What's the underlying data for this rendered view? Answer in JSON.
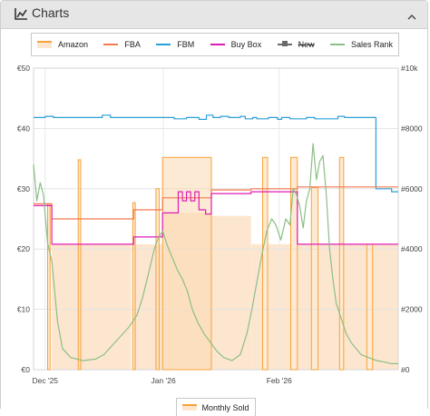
{
  "panel": {
    "title": "Charts",
    "icon": "line-chart-icon",
    "collapse_icon": "chevron-up-icon"
  },
  "legend": [
    {
      "label": "Amazon",
      "type": "area",
      "color": "#f7a23a",
      "fill": "#fde6cf",
      "enabled": true
    },
    {
      "label": "FBA",
      "type": "line",
      "color": "#f27950",
      "enabled": true
    },
    {
      "label": "FBM",
      "type": "line",
      "color": "#2a9fd6",
      "enabled": true
    },
    {
      "label": "Buy Box",
      "type": "line",
      "color": "#e01bb5",
      "enabled": true
    },
    {
      "label": "New",
      "type": "line-marker",
      "color": "#6b6b6b",
      "enabled": false
    },
    {
      "label": "Sales Rank",
      "type": "line",
      "color": "#8bbf85",
      "enabled": true
    }
  ],
  "bottom_legend": {
    "label": "Monthly Sold"
  },
  "chart_data": {
    "type": "line",
    "x_ticks": [
      "Dec '25",
      "Jan '26",
      "Feb '26"
    ],
    "y_left_ticks": [
      "€0",
      "€10",
      "€20",
      "€30",
      "€40",
      "€50"
    ],
    "y_right_ticks": [
      "#0",
      "#2000",
      "#4000",
      "#6000",
      "#8000",
      "#10k"
    ],
    "y_left_range": [
      0,
      50
    ],
    "y_right_range": [
      0,
      10000
    ],
    "grid": true,
    "legend_position": "top",
    "series": [
      {
        "name": "FBM",
        "axis": "left",
        "points": [
          [
            0,
            41.8
          ],
          [
            14,
            41.8
          ],
          [
            14,
            42
          ],
          [
            24,
            42
          ],
          [
            24,
            41.8
          ],
          [
            83,
            41.8
          ],
          [
            83,
            42.2
          ],
          [
            93,
            42.2
          ],
          [
            93,
            41.8
          ],
          [
            170,
            41.8
          ],
          [
            170,
            41.6
          ],
          [
            185,
            41.6
          ],
          [
            185,
            41.8
          ],
          [
            200,
            41.8
          ],
          [
            200,
            41.5
          ],
          [
            209,
            41.5
          ],
          [
            209,
            42.2
          ],
          [
            217,
            42.2
          ],
          [
            217,
            41.8
          ],
          [
            226,
            41.8
          ],
          [
            226,
            42
          ],
          [
            236,
            42
          ],
          [
            236,
            41.8
          ],
          [
            250,
            41.8
          ],
          [
            250,
            42
          ],
          [
            256,
            42
          ],
          [
            256,
            41.6
          ],
          [
            265,
            41.6
          ],
          [
            265,
            41.8
          ],
          [
            270,
            41.8
          ],
          [
            270,
            41.6
          ],
          [
            284,
            41.6
          ],
          [
            284,
            41.8
          ],
          [
            295,
            41.8
          ],
          [
            295,
            41.5
          ],
          [
            300,
            41.5
          ],
          [
            300,
            41.8
          ],
          [
            310,
            41.8
          ],
          [
            310,
            41.6
          ],
          [
            330,
            41.6
          ],
          [
            330,
            41.8
          ],
          [
            340,
            41.8
          ],
          [
            340,
            41.6
          ],
          [
            368,
            41.6
          ],
          [
            368,
            42
          ],
          [
            376,
            42
          ],
          [
            376,
            41.8
          ],
          [
            414,
            41.8
          ],
          [
            414,
            30
          ],
          [
            433,
            30
          ],
          [
            433,
            29.5
          ],
          [
            441,
            29.5
          ]
        ]
      },
      {
        "name": "FBA",
        "axis": "left",
        "points": [
          [
            0,
            27.5
          ],
          [
            22,
            27.5
          ],
          [
            22,
            25
          ],
          [
            121,
            25
          ],
          [
            121,
            26.5
          ],
          [
            156,
            26.5
          ],
          [
            156,
            28.5
          ],
          [
            215,
            28.5
          ],
          [
            215,
            29.8
          ],
          [
            263,
            29.8
          ],
          [
            263,
            30
          ],
          [
            319,
            30
          ],
          [
            319,
            30.3
          ],
          [
            441,
            30.3
          ]
        ]
      },
      {
        "name": "Buy Box",
        "axis": "left",
        "points": [
          [
            0,
            27.2
          ],
          [
            22,
            27.2
          ],
          [
            22,
            20.8
          ],
          [
            121,
            20.8
          ],
          [
            121,
            22
          ],
          [
            156,
            22
          ],
          [
            156,
            26
          ],
          [
            175,
            26
          ],
          [
            175,
            29.5
          ],
          [
            180,
            29.5
          ],
          [
            180,
            28
          ],
          [
            185,
            28
          ],
          [
            185,
            29.5
          ],
          [
            190,
            29.5
          ],
          [
            190,
            28
          ],
          [
            195,
            28
          ],
          [
            195,
            29.5
          ],
          [
            200,
            29.5
          ],
          [
            200,
            26.5
          ],
          [
            208,
            26.5
          ],
          [
            208,
            25.8
          ],
          [
            215,
            25.8
          ],
          [
            215,
            29.2
          ],
          [
            263,
            29.2
          ],
          [
            263,
            29.5
          ],
          [
            319,
            29.5
          ],
          [
            319,
            20.8
          ],
          [
            441,
            20.8
          ]
        ]
      },
      {
        "name": "Sales Rank",
        "axis": "right",
        "points": [
          [
            0,
            6800
          ],
          [
            4,
            5600
          ],
          [
            8,
            6200
          ],
          [
            12,
            5800
          ],
          [
            17,
            4200
          ],
          [
            22,
            3600
          ],
          [
            29,
            1600
          ],
          [
            35,
            700
          ],
          [
            45,
            400
          ],
          [
            60,
            300
          ],
          [
            75,
            350
          ],
          [
            85,
            500
          ],
          [
            95,
            800
          ],
          [
            105,
            1100
          ],
          [
            115,
            1400
          ],
          [
            125,
            1800
          ],
          [
            132,
            2400
          ],
          [
            140,
            3300
          ],
          [
            146,
            4000
          ],
          [
            150,
            4300
          ],
          [
            156,
            4600
          ],
          [
            162,
            4100
          ],
          [
            168,
            3700
          ],
          [
            174,
            3300
          ],
          [
            180,
            3000
          ],
          [
            186,
            2600
          ],
          [
            192,
            2000
          ],
          [
            198,
            1600
          ],
          [
            206,
            1200
          ],
          [
            214,
            900
          ],
          [
            222,
            600
          ],
          [
            230,
            400
          ],
          [
            240,
            300
          ],
          [
            250,
            500
          ],
          [
            258,
            1200
          ],
          [
            264,
            2000
          ],
          [
            270,
            2900
          ],
          [
            276,
            3800
          ],
          [
            282,
            4600
          ],
          [
            288,
            5000
          ],
          [
            293,
            4800
          ],
          [
            299,
            4300
          ],
          [
            305,
            5000
          ],
          [
            310,
            4800
          ],
          [
            314,
            6000
          ],
          [
            318,
            5800
          ],
          [
            322,
            5400
          ],
          [
            326,
            4700
          ],
          [
            330,
            5600
          ],
          [
            334,
            6000
          ],
          [
            338,
            7500
          ],
          [
            342,
            6300
          ],
          [
            346,
            6900
          ],
          [
            350,
            7100
          ],
          [
            354,
            5800
          ],
          [
            358,
            4000
          ],
          [
            362,
            3000
          ],
          [
            366,
            2200
          ],
          [
            372,
            1700
          ],
          [
            378,
            1200
          ],
          [
            384,
            900
          ],
          [
            390,
            700
          ],
          [
            396,
            500
          ],
          [
            405,
            400
          ],
          [
            415,
            300
          ],
          [
            425,
            250
          ],
          [
            433,
            200
          ],
          [
            441,
            200
          ]
        ]
      }
    ],
    "amazon_spikes": [
      {
        "x0": 17,
        "x1": 20,
        "y": 27.5
      },
      {
        "x0": 54,
        "x1": 57,
        "y": 34.8
      },
      {
        "x0": 120,
        "x1": 123,
        "y": 27.7
      },
      {
        "x0": 148,
        "x1": 152,
        "y": 30
      },
      {
        "x0": 156,
        "x1": 215,
        "y": 35.2
      },
      {
        "x0": 277,
        "x1": 283,
        "y": 35.2
      },
      {
        "x0": 311,
        "x1": 319,
        "y": 35.2
      },
      {
        "x0": 336,
        "x1": 344,
        "y": 30.2
      },
      {
        "x0": 370,
        "x1": 375,
        "y": 35.2
      },
      {
        "x0": 403,
        "x1": 410,
        "y": 20.8
      }
    ],
    "monthly_sold_bands": [
      {
        "x0": 22,
        "x1": 118,
        "top": 20.8
      },
      {
        "x0": 121,
        "x1": 156,
        "top": 20.8
      },
      {
        "x0": 156,
        "x1": 215,
        "top": 26
      },
      {
        "x0": 215,
        "x1": 263,
        "top": 25.5
      },
      {
        "x0": 263,
        "x1": 277,
        "top": 20.8
      },
      {
        "x0": 283,
        "x1": 311,
        "top": 20.8
      },
      {
        "x0": 319,
        "x1": 336,
        "top": 20.8
      },
      {
        "x0": 344,
        "x1": 370,
        "top": 20.8
      },
      {
        "x0": 375,
        "x1": 403,
        "top": 20.8
      },
      {
        "x0": 410,
        "x1": 441,
        "top": 20.8
      }
    ]
  }
}
